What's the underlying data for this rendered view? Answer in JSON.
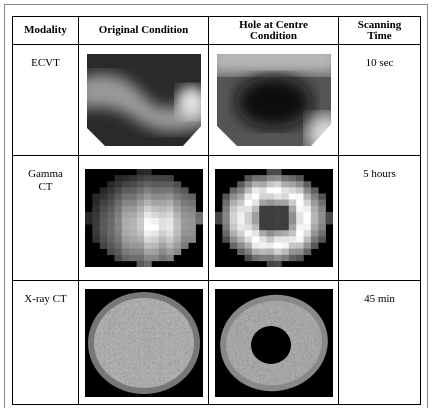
{
  "table": {
    "header": [
      "Modality",
      "Original Condition",
      "Hole at Centre Condition",
      "Scanning Time"
    ],
    "rows": [
      [
        "ECVT",
        "10 sec"
      ],
      [
        "Gamma CT",
        "5 hours"
      ],
      [
        "X-ray CT",
        "45 min"
      ]
    ]
  }
}
